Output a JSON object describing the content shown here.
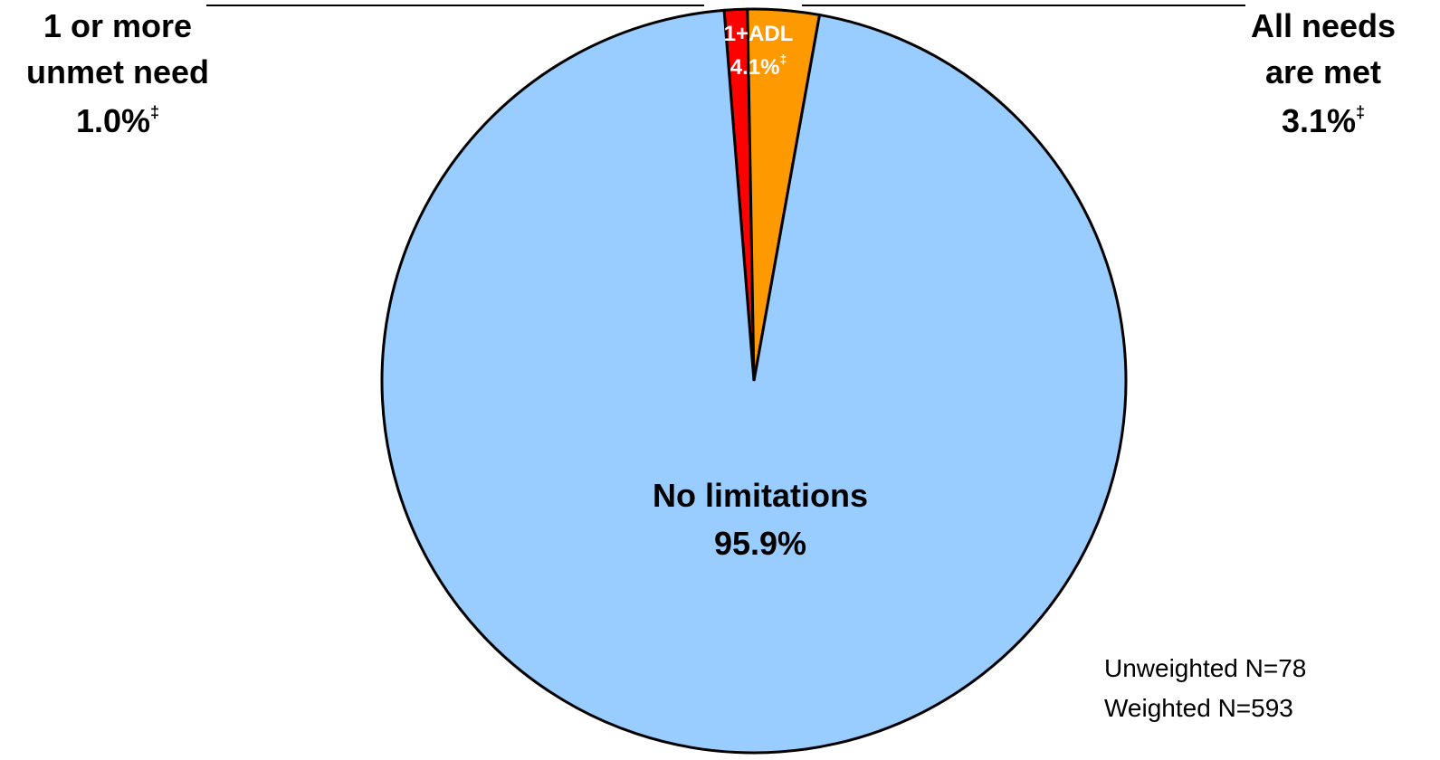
{
  "chart_data": {
    "type": "pie",
    "slices": [
      {
        "label": "1 or more unmet need",
        "value": 1.0,
        "display": "1.0%",
        "footnote": "‡",
        "color": "#ff0000"
      },
      {
        "label": "All needs are met",
        "value": 3.1,
        "display": "3.1%",
        "footnote": "‡",
        "color": "#ff9900"
      },
      {
        "label": "No limitations",
        "value": 95.9,
        "display": "95.9%",
        "footnote": "",
        "color": "#99ccff"
      }
    ],
    "group_label": {
      "name": "1+ADL",
      "display": "4.1%",
      "footnote": "‡"
    },
    "callouts": {
      "left": [
        "1 or more",
        "unmet need"
      ],
      "right": [
        "All needs",
        "are met"
      ]
    },
    "notes": [
      "Unweighted N=78",
      "Weighted N=593"
    ]
  }
}
